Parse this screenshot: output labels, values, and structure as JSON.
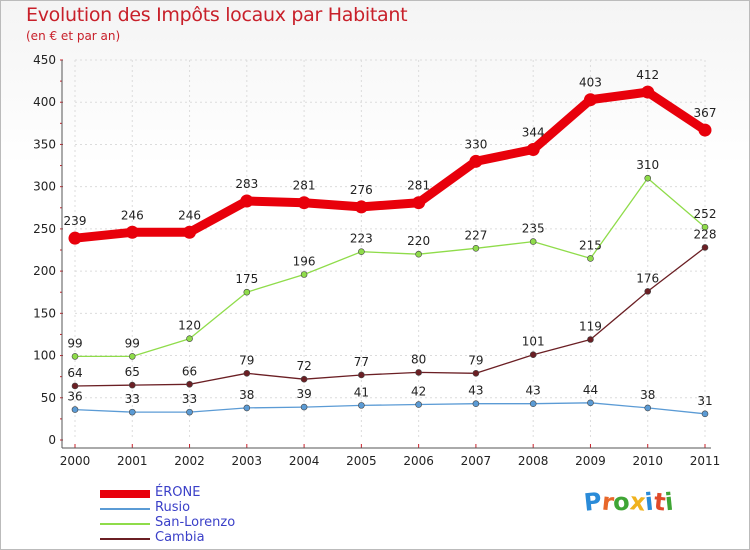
{
  "title": "Evolution des Impôts locaux par Habitant",
  "subtitle": "(en € et par an)",
  "logo": {
    "text": "Proxiti",
    "colors": [
      "#2a8bd8",
      "#e8672a",
      "#3fa535",
      "#f0b21e",
      "#2a8bd8",
      "#e04a2a",
      "#3fa535"
    ]
  },
  "chart_data": {
    "type": "line",
    "title": "Evolution des Impôts locaux par Habitant",
    "subtitle": "(en € et par an)",
    "x": [
      "2000",
      "2001",
      "2002",
      "2003",
      "2004",
      "2005",
      "2006",
      "2007",
      "2008",
      "2009",
      "2010",
      "2011"
    ],
    "ylim": [
      0,
      450
    ],
    "yticks": [
      "0",
      "50",
      "100",
      "150",
      "200",
      "250",
      "300",
      "350",
      "400",
      "450"
    ],
    "grid": true,
    "legend_position": "bottom-left",
    "series": [
      {
        "name": "ÉRONE",
        "color": "#e8000b",
        "weight": "bold",
        "values": [
          239,
          246,
          246,
          283,
          281,
          276,
          281,
          330,
          344,
          403,
          412,
          367
        ]
      },
      {
        "name": "Rusio",
        "color": "#5b9bd5",
        "weight": "thin",
        "values": [
          36,
          33,
          33,
          38,
          39,
          41,
          42,
          43,
          43,
          44,
          38,
          31
        ]
      },
      {
        "name": "San-Lorenzo",
        "color": "#8fdc4a",
        "weight": "thin",
        "values": [
          99,
          99,
          120,
          175,
          196,
          223,
          220,
          227,
          235,
          215,
          310,
          252
        ]
      },
      {
        "name": "Cambia",
        "color": "#6b1f24",
        "weight": "thin",
        "values": [
          64,
          65,
          66,
          79,
          72,
          77,
          80,
          79,
          101,
          119,
          176,
          228
        ]
      }
    ]
  }
}
